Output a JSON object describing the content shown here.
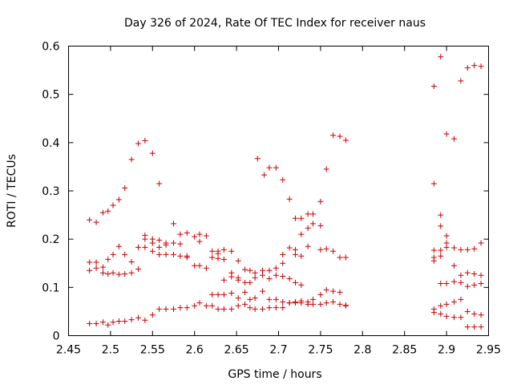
{
  "chart_data": {
    "type": "scatter",
    "title": "Day 326 of 2024, Rate Of TEC Index for receiver naus",
    "xlabel": "GPS time / hours",
    "ylabel": "ROTI / TECUs",
    "xlim": [
      2.45,
      2.95
    ],
    "ylim": [
      0,
      0.6
    ],
    "x_ticks": [
      2.45,
      2.5,
      2.55,
      2.6,
      2.65,
      2.7,
      2.75,
      2.8,
      2.85,
      2.9,
      2.95
    ],
    "x_tick_labels": [
      "2.45",
      "2.5",
      "2.55",
      "2.6",
      "2.65",
      "2.7",
      "2.75",
      "2.8",
      "2.85",
      "2.9",
      "2.95"
    ],
    "y_ticks": [
      0,
      0.1,
      0.2,
      0.3,
      0.4,
      0.5,
      0.6
    ],
    "y_tick_labels": [
      "0",
      "0.1",
      "0.2",
      "0.3",
      "0.4",
      "0.5",
      "0.6"
    ],
    "marker": "+",
    "marker_color": "#cc0000",
    "grid": false,
    "series": [
      {
        "name": "ROTI",
        "points": [
          [
            2.475,
            0.24
          ],
          [
            2.483,
            0.235
          ],
          [
            2.491,
            0.255
          ],
          [
            2.497,
            0.258
          ],
          [
            2.503,
            0.27
          ],
          [
            2.51,
            0.282
          ],
          [
            2.517,
            0.306
          ],
          [
            2.525,
            0.365
          ],
          [
            2.533,
            0.398
          ],
          [
            2.541,
            0.404
          ],
          [
            2.55,
            0.378
          ],
          [
            2.558,
            0.315
          ],
          [
            2.475,
            0.152
          ],
          [
            2.483,
            0.152
          ],
          [
            2.491,
            0.142
          ],
          [
            2.497,
            0.158
          ],
          [
            2.503,
            0.168
          ],
          [
            2.51,
            0.185
          ],
          [
            2.517,
            0.168
          ],
          [
            2.525,
            0.153
          ],
          [
            2.533,
            0.183
          ],
          [
            2.541,
            0.208
          ],
          [
            2.541,
            0.2
          ],
          [
            2.55,
            0.2
          ],
          [
            2.55,
            0.192
          ],
          [
            2.558,
            0.198
          ],
          [
            2.558,
            0.183
          ],
          [
            2.566,
            0.192
          ],
          [
            2.566,
            0.188
          ],
          [
            2.575,
            0.232
          ],
          [
            2.575,
            0.192
          ],
          [
            2.583,
            0.21
          ],
          [
            2.583,
            0.19
          ],
          [
            2.591,
            0.213
          ],
          [
            2.6,
            0.205
          ],
          [
            2.6,
            0.145
          ],
          [
            2.606,
            0.21
          ],
          [
            2.606,
            0.195
          ],
          [
            2.614,
            0.207
          ],
          [
            2.621,
            0.175
          ],
          [
            2.628,
            0.175
          ],
          [
            2.628,
            0.17
          ],
          [
            2.635,
            0.178
          ],
          [
            2.644,
            0.175
          ],
          [
            2.652,
            0.155
          ],
          [
            2.475,
            0.135
          ],
          [
            2.483,
            0.14
          ],
          [
            2.491,
            0.13
          ],
          [
            2.497,
            0.128
          ],
          [
            2.503,
            0.13
          ],
          [
            2.51,
            0.127
          ],
          [
            2.517,
            0.128
          ],
          [
            2.525,
            0.13
          ],
          [
            2.533,
            0.138
          ],
          [
            2.541,
            0.183
          ],
          [
            2.55,
            0.175
          ],
          [
            2.558,
            0.168
          ],
          [
            2.566,
            0.168
          ],
          [
            2.575,
            0.168
          ],
          [
            2.583,
            0.165
          ],
          [
            2.591,
            0.165
          ],
          [
            2.591,
            0.162
          ],
          [
            2.606,
            0.145
          ],
          [
            2.614,
            0.14
          ],
          [
            2.621,
            0.162
          ],
          [
            2.628,
            0.16
          ],
          [
            2.635,
            0.158
          ],
          [
            2.644,
            0.13
          ],
          [
            2.652,
            0.12
          ],
          [
            2.66,
            0.137
          ],
          [
            2.666,
            0.135
          ],
          [
            2.672,
            0.13
          ],
          [
            2.681,
            0.135
          ],
          [
            2.689,
            0.135
          ],
          [
            2.697,
            0.125
          ],
          [
            2.705,
            0.123
          ],
          [
            2.713,
            0.118
          ],
          [
            2.72,
            0.11
          ],
          [
            2.727,
            0.105
          ],
          [
            2.635,
            0.115
          ],
          [
            2.644,
            0.122
          ],
          [
            2.652,
            0.115
          ],
          [
            2.66,
            0.11
          ],
          [
            2.666,
            0.11
          ],
          [
            2.672,
            0.12
          ],
          [
            2.681,
            0.125
          ],
          [
            2.689,
            0.118
          ],
          [
            2.697,
            0.14
          ],
          [
            2.705,
            0.15
          ],
          [
            2.475,
            0.025
          ],
          [
            2.483,
            0.025
          ],
          [
            2.491,
            0.028
          ],
          [
            2.497,
            0.022
          ],
          [
            2.503,
            0.028
          ],
          [
            2.51,
            0.03
          ],
          [
            2.517,
            0.03
          ],
          [
            2.525,
            0.033
          ],
          [
            2.533,
            0.037
          ],
          [
            2.541,
            0.032
          ],
          [
            2.55,
            0.043
          ],
          [
            2.558,
            0.055
          ],
          [
            2.566,
            0.055
          ],
          [
            2.575,
            0.055
          ],
          [
            2.583,
            0.058
          ],
          [
            2.591,
            0.058
          ],
          [
            2.6,
            0.062
          ],
          [
            2.606,
            0.068
          ],
          [
            2.614,
            0.062
          ],
          [
            2.621,
            0.062
          ],
          [
            2.628,
            0.055
          ],
          [
            2.635,
            0.055
          ],
          [
            2.644,
            0.055
          ],
          [
            2.652,
            0.062
          ],
          [
            2.66,
            0.065
          ],
          [
            2.666,
            0.058
          ],
          [
            2.672,
            0.055
          ],
          [
            2.681,
            0.055
          ],
          [
            2.689,
            0.058
          ],
          [
            2.697,
            0.058
          ],
          [
            2.705,
            0.058
          ],
          [
            2.713,
            0.068
          ],
          [
            2.72,
            0.068
          ],
          [
            2.727,
            0.068
          ],
          [
            2.735,
            0.065
          ],
          [
            2.741,
            0.065
          ],
          [
            2.75,
            0.065
          ],
          [
            2.757,
            0.068
          ],
          [
            2.765,
            0.07
          ],
          [
            2.773,
            0.065
          ],
          [
            2.78,
            0.062
          ],
          [
            2.621,
            0.085
          ],
          [
            2.628,
            0.085
          ],
          [
            2.635,
            0.085
          ],
          [
            2.644,
            0.088
          ],
          [
            2.652,
            0.078
          ],
          [
            2.66,
            0.09
          ],
          [
            2.666,
            0.075
          ],
          [
            2.672,
            0.078
          ],
          [
            2.681,
            0.092
          ],
          [
            2.689,
            0.075
          ],
          [
            2.697,
            0.075
          ],
          [
            2.705,
            0.07
          ],
          [
            2.713,
            0.068
          ],
          [
            2.72,
            0.07
          ],
          [
            2.727,
            0.072
          ],
          [
            2.735,
            0.07
          ],
          [
            2.741,
            0.075
          ],
          [
            2.75,
            0.085
          ],
          [
            2.757,
            0.095
          ],
          [
            2.765,
            0.092
          ],
          [
            2.773,
            0.09
          ],
          [
            2.78,
            0.063
          ],
          [
            2.675,
            0.367
          ],
          [
            2.683,
            0.333
          ],
          [
            2.689,
            0.348
          ],
          [
            2.697,
            0.348
          ],
          [
            2.705,
            0.323
          ],
          [
            2.713,
            0.283
          ],
          [
            2.72,
            0.243
          ],
          [
            2.727,
            0.243
          ],
          [
            2.735,
            0.252
          ],
          [
            2.741,
            0.252
          ],
          [
            2.75,
            0.278
          ],
          [
            2.757,
            0.345
          ],
          [
            2.765,
            0.415
          ],
          [
            2.773,
            0.413
          ],
          [
            2.78,
            0.405
          ],
          [
            2.705,
            0.168
          ],
          [
            2.713,
            0.182
          ],
          [
            2.72,
            0.178
          ],
          [
            2.727,
            0.21
          ],
          [
            2.735,
            0.223
          ],
          [
            2.741,
            0.232
          ],
          [
            2.75,
            0.228
          ],
          [
            2.757,
            0.18
          ],
          [
            2.765,
            0.175
          ],
          [
            2.773,
            0.162
          ],
          [
            2.78,
            0.162
          ],
          [
            2.72,
            0.168
          ],
          [
            2.727,
            0.165
          ],
          [
            2.735,
            0.185
          ],
          [
            2.75,
            0.178
          ],
          [
            2.885,
            0.517
          ],
          [
            2.893,
            0.578
          ],
          [
            2.9,
            0.418
          ],
          [
            2.909,
            0.408
          ],
          [
            2.917,
            0.528
          ],
          [
            2.925,
            0.555
          ],
          [
            2.933,
            0.56
          ],
          [
            2.941,
            0.558
          ],
          [
            2.885,
            0.315
          ],
          [
            2.893,
            0.25
          ],
          [
            2.893,
            0.227
          ],
          [
            2.9,
            0.207
          ],
          [
            2.9,
            0.192
          ],
          [
            2.909,
            0.182
          ],
          [
            2.917,
            0.178
          ],
          [
            2.925,
            0.178
          ],
          [
            2.933,
            0.18
          ],
          [
            2.941,
            0.192
          ],
          [
            2.885,
            0.177
          ],
          [
            2.885,
            0.162
          ],
          [
            2.885,
            0.155
          ],
          [
            2.893,
            0.177
          ],
          [
            2.893,
            0.165
          ],
          [
            2.9,
            0.183
          ],
          [
            2.909,
            0.145
          ],
          [
            2.917,
            0.125
          ],
          [
            2.925,
            0.13
          ],
          [
            2.933,
            0.128
          ],
          [
            2.941,
            0.125
          ],
          [
            2.893,
            0.108
          ],
          [
            2.9,
            0.108
          ],
          [
            2.909,
            0.112
          ],
          [
            2.917,
            0.11
          ],
          [
            2.925,
            0.102
          ],
          [
            2.933,
            0.105
          ],
          [
            2.941,
            0.108
          ],
          [
            2.885,
            0.055
          ],
          [
            2.885,
            0.048
          ],
          [
            2.893,
            0.062
          ],
          [
            2.893,
            0.045
          ],
          [
            2.9,
            0.065
          ],
          [
            2.9,
            0.04
          ],
          [
            2.909,
            0.07
          ],
          [
            2.909,
            0.038
          ],
          [
            2.917,
            0.075
          ],
          [
            2.917,
            0.038
          ],
          [
            2.925,
            0.05
          ],
          [
            2.925,
            0.018
          ],
          [
            2.933,
            0.045
          ],
          [
            2.933,
            0.018
          ],
          [
            2.941,
            0.043
          ],
          [
            2.941,
            0.018
          ]
        ]
      }
    ]
  }
}
